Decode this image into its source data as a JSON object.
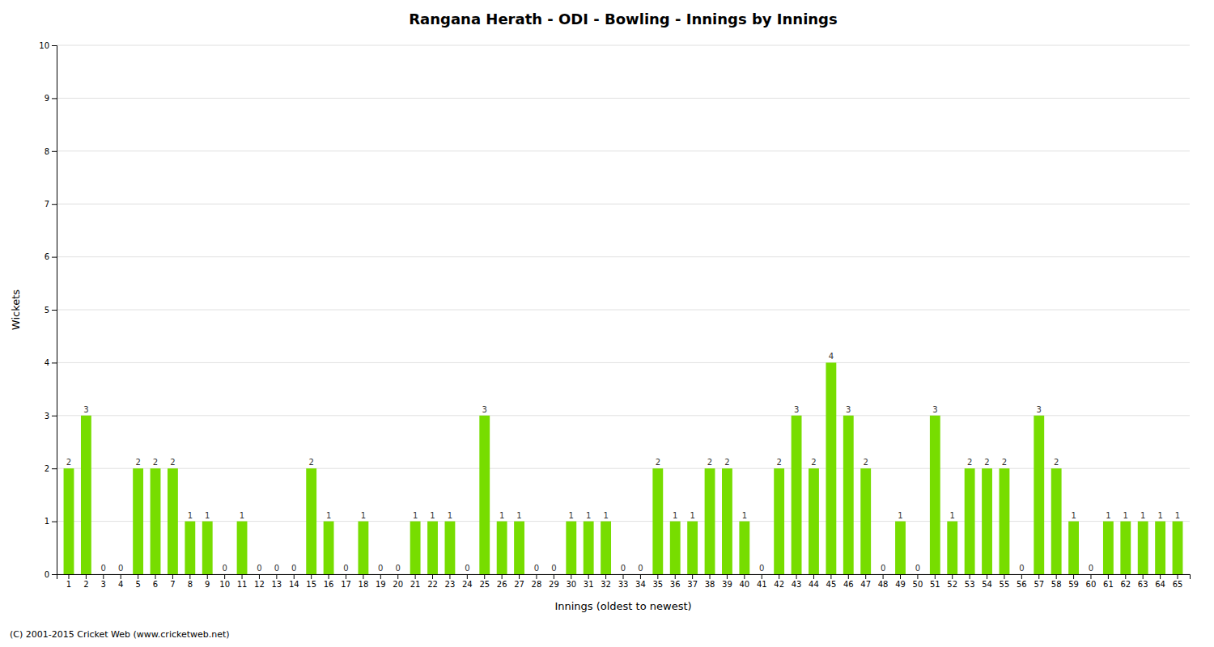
{
  "chart_data": {
    "type": "bar",
    "title": "Rangana Herath - ODI - Bowling - Innings by Innings",
    "x_label": "Innings (oldest to newest)",
    "y_label": "Wickets",
    "annotations": [
      "(C) 2001-2015 Cricket Web (www.cricketweb.net)"
    ],
    "categories": [
      "1",
      "2",
      "3",
      "4",
      "5",
      "6",
      "7",
      "8",
      "9",
      "10",
      "11",
      "12",
      "13",
      "14",
      "15",
      "16",
      "17",
      "18",
      "19",
      "20",
      "21",
      "22",
      "23",
      "24",
      "25",
      "26",
      "27",
      "28",
      "29",
      "30",
      "31",
      "32",
      "33",
      "34",
      "35",
      "36",
      "37",
      "38",
      "39",
      "40",
      "41",
      "42",
      "43",
      "44",
      "45",
      "46",
      "47",
      "48",
      "49",
      "50",
      "51",
      "52",
      "53",
      "54",
      "55",
      "56",
      "57",
      "58",
      "59",
      "60",
      "61",
      "62",
      "63",
      "64",
      "65"
    ],
    "values": [
      2,
      3,
      0,
      0,
      2,
      2,
      2,
      1,
      1,
      0,
      1,
      0,
      0,
      0,
      2,
      1,
      0,
      1,
      0,
      0,
      1,
      1,
      1,
      0,
      3,
      1,
      1,
      0,
      0,
      1,
      1,
      1,
      0,
      0,
      2,
      1,
      1,
      2,
      2,
      1,
      0,
      2,
      3,
      2,
      4,
      3,
      2,
      0,
      1,
      0,
      3,
      1,
      2,
      2,
      2,
      0,
      3,
      2,
      1,
      0,
      1,
      1,
      1,
      1,
      1
    ],
    "color": "#77DD00",
    "ylim": [
      0,
      10
    ],
    "yticks": [
      0,
      1,
      2,
      3,
      4,
      5,
      6,
      7,
      8,
      9,
      10
    ],
    "grid": true,
    "data_labels": true
  }
}
